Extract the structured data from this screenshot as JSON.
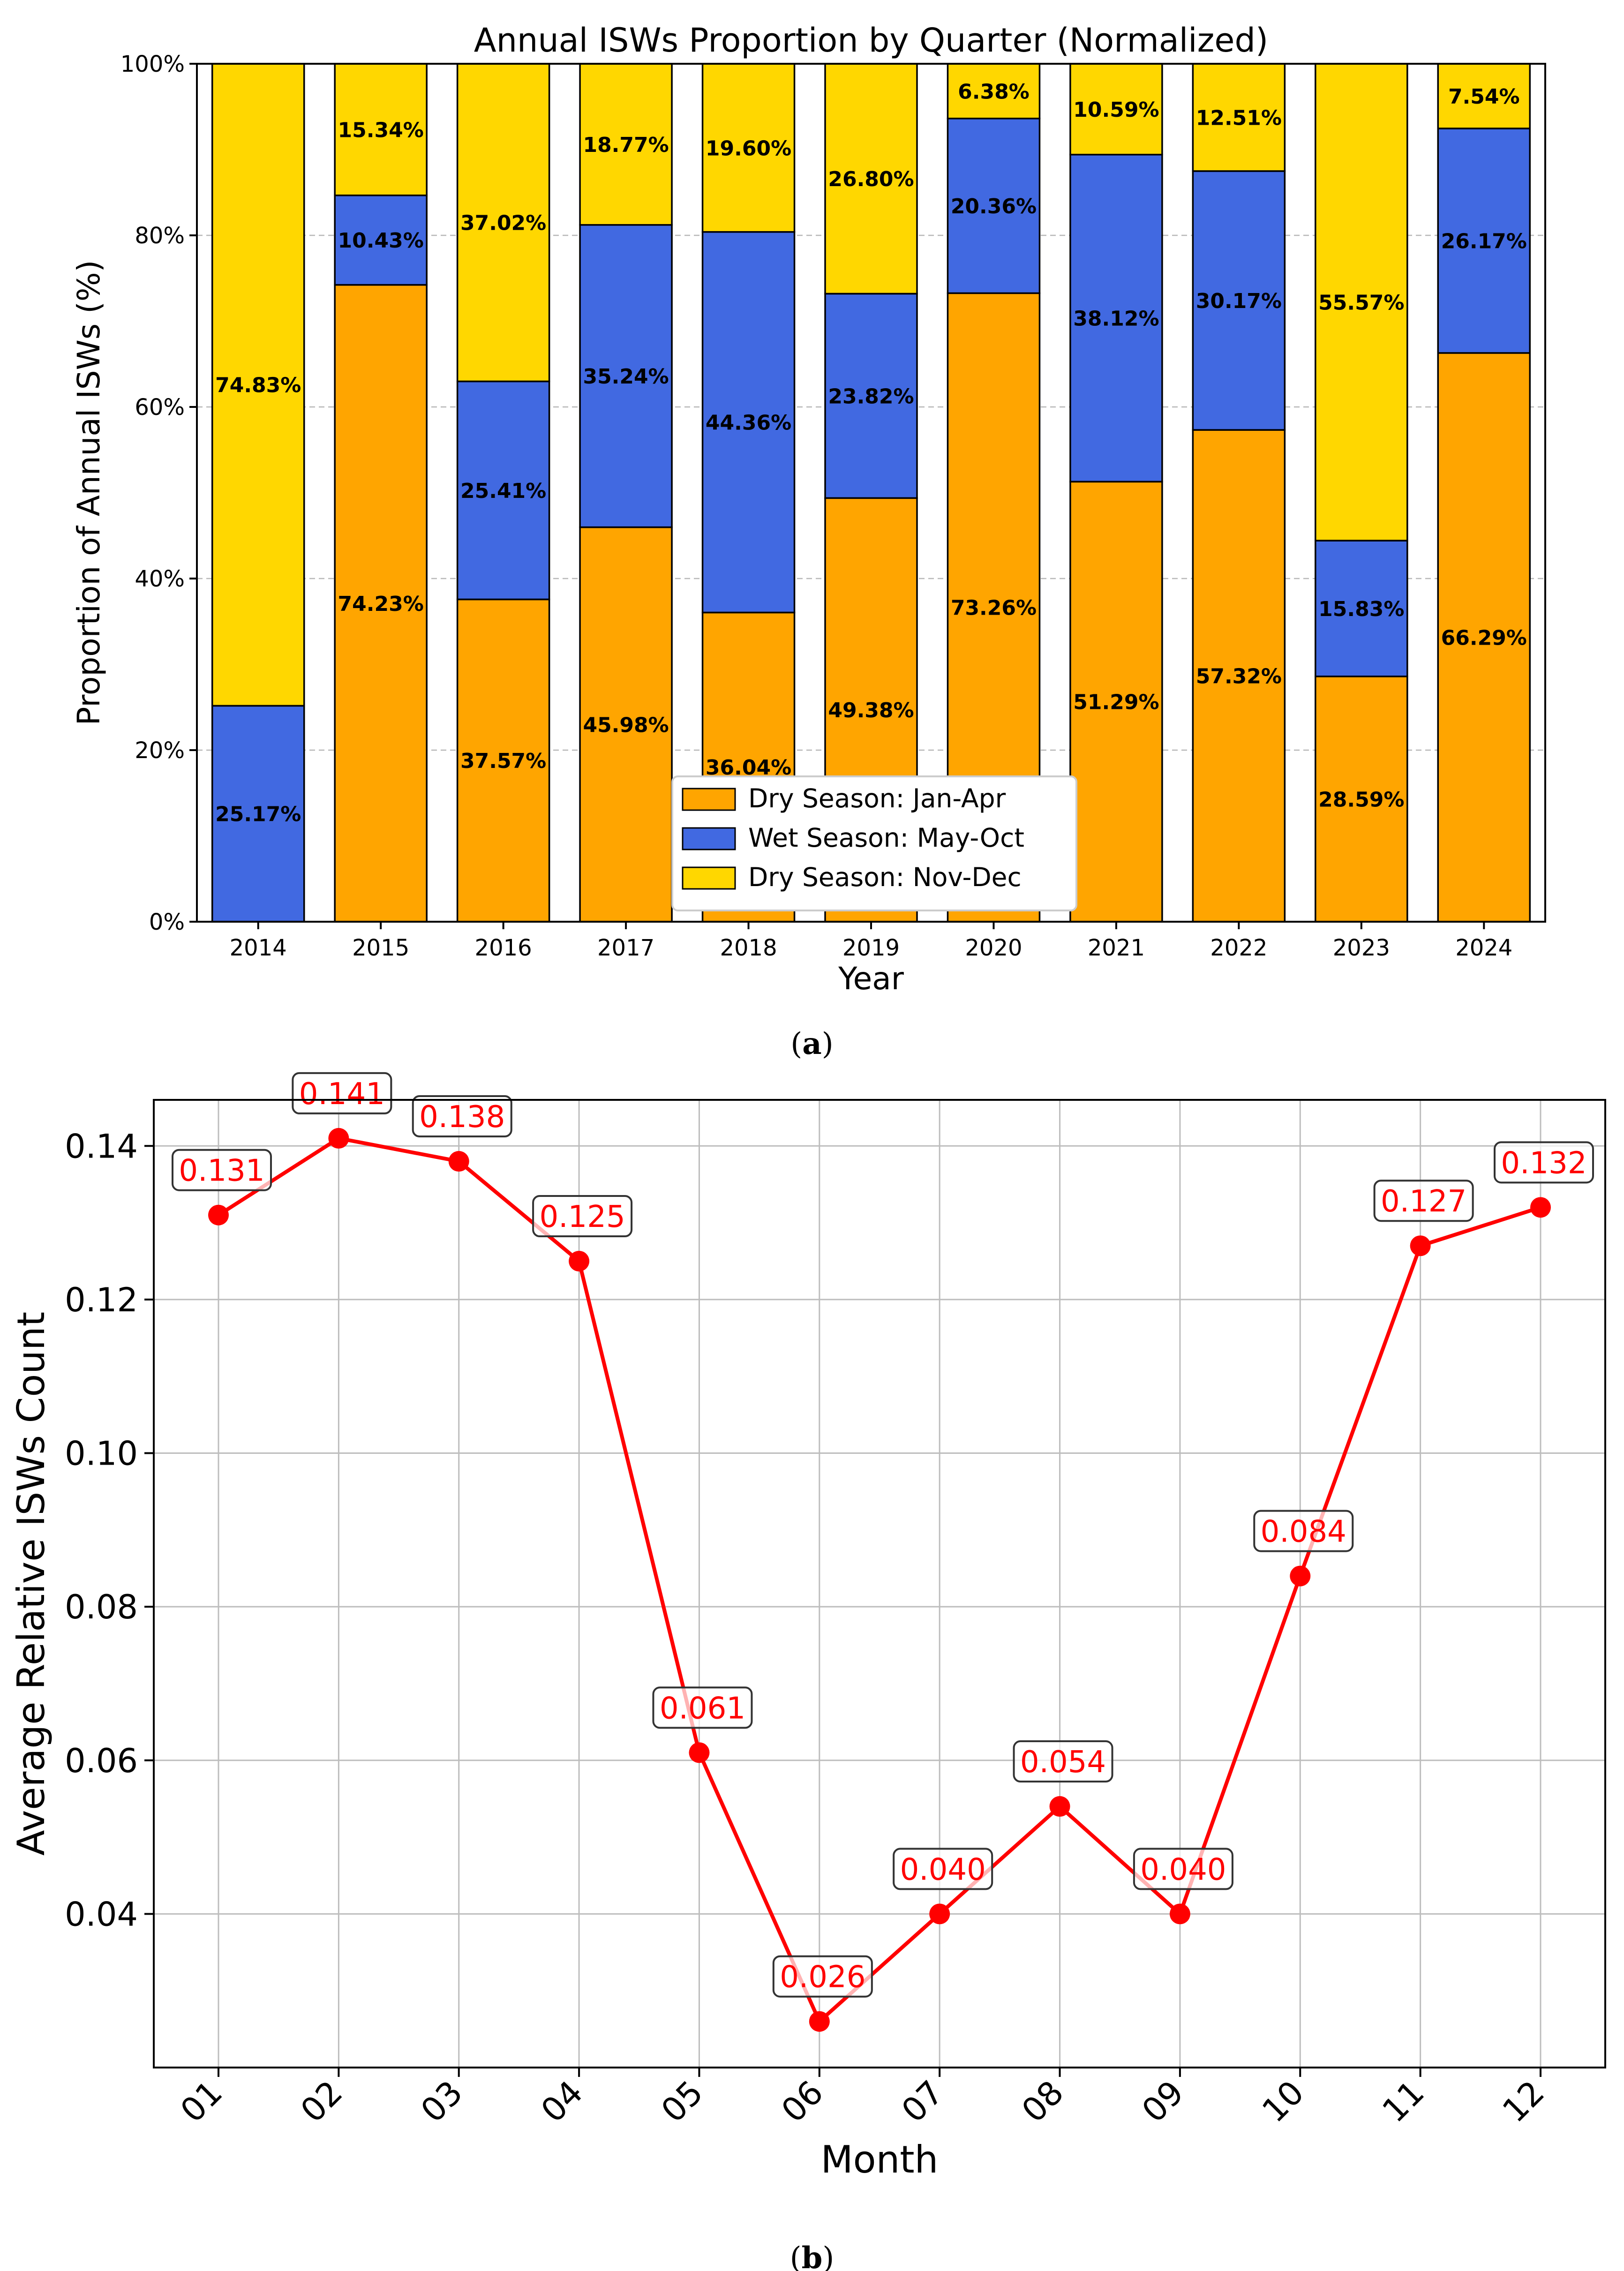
{
  "chart_data": [
    {
      "type": "bar",
      "stacked": true,
      "title": "Annual ISWs Proportion by Quarter (Normalized)",
      "xlabel": "Year",
      "ylabel": "Proportion of Annual ISWs (%)",
      "ylim": [
        0,
        100
      ],
      "yticks": [
        "0%",
        "20%",
        "40%",
        "60%",
        "80%",
        "100%"
      ],
      "grid": "horizontal dashed",
      "legend_position": "lower-center",
      "categories": [
        "2014",
        "2015",
        "2016",
        "2017",
        "2018",
        "2019",
        "2020",
        "2021",
        "2022",
        "2023",
        "2024"
      ],
      "series": [
        {
          "name": "Dry Season: Jan-Apr",
          "color": "#FFA500",
          "values": [
            0,
            74.23,
            37.57,
            45.98,
            36.04,
            49.38,
            73.26,
            51.29,
            57.32,
            28.59,
            66.29
          ],
          "labels": [
            "",
            "74.23%",
            "37.57%",
            "45.98%",
            "36.04%",
            "49.38%",
            "73.26%",
            "51.29%",
            "57.32%",
            "28.59%",
            "66.29%"
          ]
        },
        {
          "name": "Wet Season: May-Oct",
          "color": "#4169E1",
          "values": [
            25.17,
            10.43,
            25.41,
            35.24,
            44.36,
            23.82,
            20.36,
            38.12,
            30.17,
            15.83,
            26.17
          ],
          "labels": [
            "25.17%",
            "10.43%",
            "25.41%",
            "35.24%",
            "44.36%",
            "23.82%",
            "20.36%",
            "38.12%",
            "30.17%",
            "15.83%",
            "26.17%"
          ]
        },
        {
          "name": "Dry Season: Nov-Dec",
          "color": "#FFD700",
          "values": [
            74.83,
            15.34,
            37.02,
            18.77,
            19.6,
            26.8,
            6.38,
            10.59,
            12.51,
            55.57,
            7.54
          ],
          "labels": [
            "74.83%",
            "15.34%",
            "37.02%",
            "18.77%",
            "19.60%",
            "26.80%",
            "6.38%",
            "10.59%",
            "12.51%",
            "55.57%",
            "7.54%"
          ]
        }
      ],
      "caption": "a"
    },
    {
      "type": "line",
      "title": "",
      "xlabel": "Month",
      "ylabel": "Average Relative ISWs Count",
      "ylim": [
        0.02,
        0.146
      ],
      "yticks": [
        0.04,
        0.06,
        0.08,
        0.1,
        0.12,
        0.14
      ],
      "ytick_labels": [
        "0.04",
        "0.06",
        "0.08",
        "0.10",
        "0.12",
        "0.14"
      ],
      "grid": "both solid",
      "x": [
        "01",
        "02",
        "03",
        "04",
        "05",
        "06",
        "07",
        "08",
        "09",
        "10",
        "11",
        "12"
      ],
      "values": [
        0.131,
        0.141,
        0.138,
        0.125,
        0.061,
        0.026,
        0.04,
        0.054,
        0.04,
        0.084,
        0.127,
        0.132
      ],
      "point_labels": [
        "0.131",
        "0.141",
        "0.138",
        "0.125",
        "0.061",
        "0.026",
        "0.040",
        "0.054",
        "0.040",
        "0.084",
        "0.127",
        "0.132"
      ],
      "color": "#FF0000",
      "caption": "b"
    }
  ]
}
